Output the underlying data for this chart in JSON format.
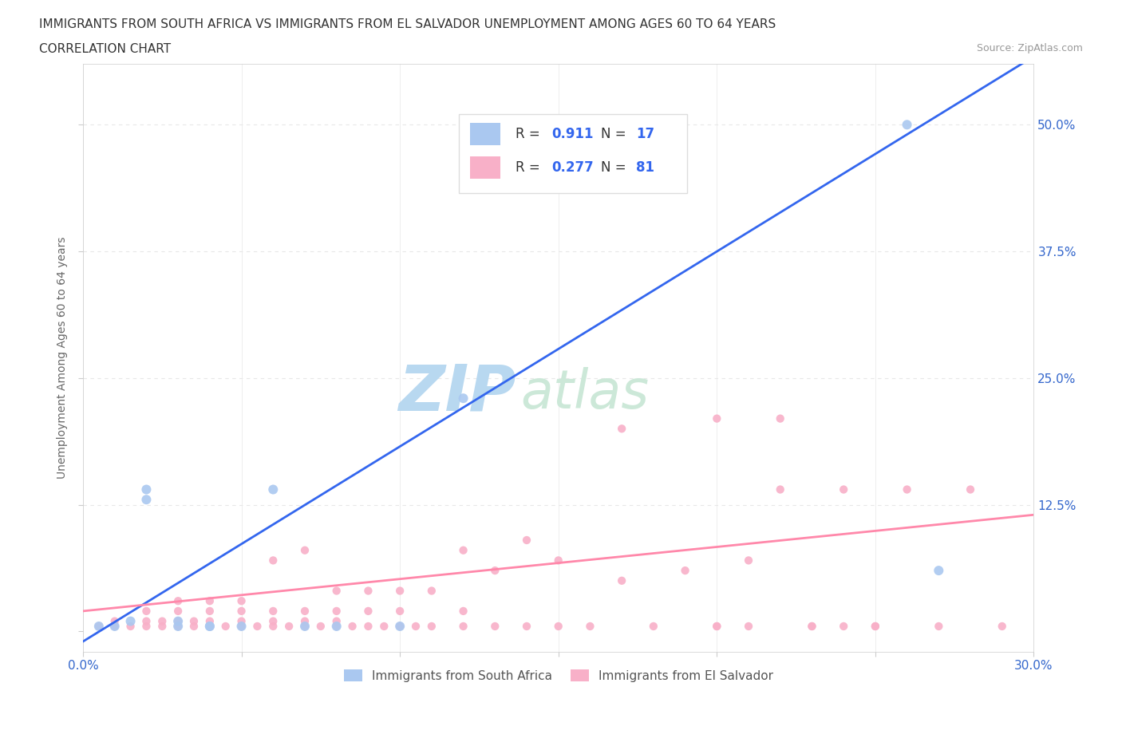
{
  "title_line1": "IMMIGRANTS FROM SOUTH AFRICA VS IMMIGRANTS FROM EL SALVADOR UNEMPLOYMENT AMONG AGES 60 TO 64 YEARS",
  "title_line2": "CORRELATION CHART",
  "source_text": "Source: ZipAtlas.com",
  "ylabel": "Unemployment Among Ages 60 to 64 years",
  "xlim": [
    0.0,
    0.3
  ],
  "ylim": [
    -0.02,
    0.56
  ],
  "xticks": [
    0.0,
    0.05,
    0.1,
    0.15,
    0.2,
    0.25,
    0.3
  ],
  "ytick_positions": [
    0.0,
    0.125,
    0.25,
    0.375,
    0.5
  ],
  "yticklabels": [
    "",
    "12.5%",
    "25.0%",
    "37.5%",
    "50.0%"
  ],
  "color_south_africa": "#aac8f0",
  "color_el_salvador": "#f8b0c8",
  "line_color_south_africa": "#3366ee",
  "line_color_el_salvador": "#ff88aa",
  "R_south_africa": 0.911,
  "N_south_africa": 17,
  "R_el_salvador": 0.277,
  "N_el_salvador": 81,
  "watermark_text": "ZIPatlas",
  "watermark_color": "#cce4f5",
  "legend_label_sa": "Immigrants from South Africa",
  "legend_label_es": "Immigrants from El Salvador",
  "background_color": "#ffffff",
  "grid_color": "#e8e8e8",
  "sa_x": [
    0.005,
    0.01,
    0.015,
    0.02,
    0.02,
    0.03,
    0.03,
    0.04,
    0.04,
    0.05,
    0.06,
    0.07,
    0.08,
    0.1,
    0.12,
    0.26,
    0.27
  ],
  "sa_y": [
    0.005,
    0.005,
    0.01,
    0.13,
    0.14,
    0.005,
    0.01,
    0.005,
    0.005,
    0.005,
    0.14,
    0.005,
    0.005,
    0.005,
    0.23,
    0.5,
    0.06
  ],
  "es_x": [
    0.005,
    0.01,
    0.01,
    0.015,
    0.02,
    0.02,
    0.02,
    0.025,
    0.025,
    0.03,
    0.03,
    0.03,
    0.03,
    0.035,
    0.035,
    0.04,
    0.04,
    0.04,
    0.04,
    0.045,
    0.05,
    0.05,
    0.05,
    0.05,
    0.055,
    0.06,
    0.06,
    0.06,
    0.06,
    0.065,
    0.07,
    0.07,
    0.07,
    0.07,
    0.075,
    0.08,
    0.08,
    0.08,
    0.08,
    0.085,
    0.09,
    0.09,
    0.09,
    0.095,
    0.1,
    0.1,
    0.1,
    0.105,
    0.11,
    0.11,
    0.12,
    0.12,
    0.12,
    0.13,
    0.13,
    0.14,
    0.14,
    0.15,
    0.15,
    0.16,
    0.17,
    0.17,
    0.18,
    0.19,
    0.2,
    0.2,
    0.21,
    0.22,
    0.23,
    0.24,
    0.25,
    0.26,
    0.27,
    0.28,
    0.29,
    0.2,
    0.21,
    0.22,
    0.23,
    0.24,
    0.25
  ],
  "es_y": [
    0.005,
    0.005,
    0.01,
    0.005,
    0.005,
    0.01,
    0.02,
    0.005,
    0.01,
    0.005,
    0.01,
    0.02,
    0.03,
    0.005,
    0.01,
    0.005,
    0.01,
    0.02,
    0.03,
    0.005,
    0.005,
    0.01,
    0.02,
    0.03,
    0.005,
    0.005,
    0.01,
    0.02,
    0.07,
    0.005,
    0.005,
    0.01,
    0.02,
    0.08,
    0.005,
    0.005,
    0.01,
    0.02,
    0.04,
    0.005,
    0.005,
    0.02,
    0.04,
    0.005,
    0.005,
    0.02,
    0.04,
    0.005,
    0.005,
    0.04,
    0.005,
    0.02,
    0.08,
    0.005,
    0.06,
    0.005,
    0.09,
    0.005,
    0.07,
    0.005,
    0.05,
    0.2,
    0.005,
    0.06,
    0.005,
    0.21,
    0.005,
    0.21,
    0.005,
    0.14,
    0.005,
    0.14,
    0.005,
    0.14,
    0.005,
    0.005,
    0.07,
    0.14,
    0.005,
    0.005,
    0.005
  ]
}
